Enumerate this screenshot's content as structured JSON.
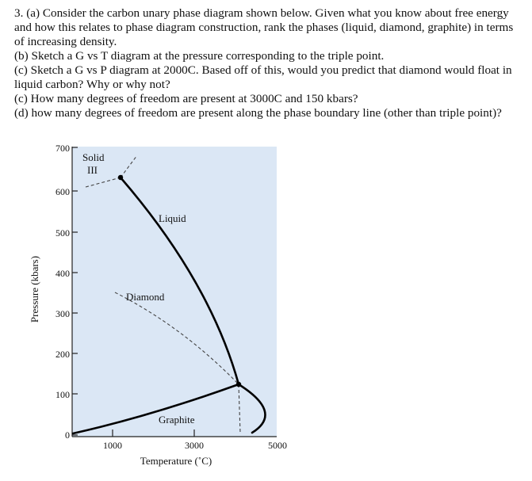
{
  "question": {
    "lines": [
      "3. (a) Consider the carbon unary phase diagram shown below. Given what you know about free energy and how this relates to phase diagram construction, rank the phases (liquid, diamond, graphite) in terms of increasing density.",
      "(b) Sketch a G vs T diagram at the pressure corresponding to the triple point.",
      "(c) Sketch a G vs P diagram at 2000C. Based off of this, would you predict that diamond would float in liquid carbon? Why or why not?",
      "(c) How many degrees of freedom are present at 3000C and 150 kbars?",
      "(d) how many degrees of freedom are present along the phase boundary line (other than triple point)?"
    ]
  },
  "diagram": {
    "y_axis_label": "Pressure (kbars)",
    "x_axis_label": "Temperature (˚C)",
    "y_ticks": [
      "700",
      "600",
      "500",
      "400",
      "300",
      "200",
      "100",
      "0"
    ],
    "x_ticks": [
      "1000",
      "3000",
      "5000"
    ],
    "regions": {
      "solid": "Solid",
      "solid_sub": "III",
      "liquid": "Liquid",
      "diamond": "Diamond",
      "graphite": "Graphite"
    },
    "colors": {
      "plot_bg": "#dbe7f5",
      "curve": "#000000"
    }
  }
}
